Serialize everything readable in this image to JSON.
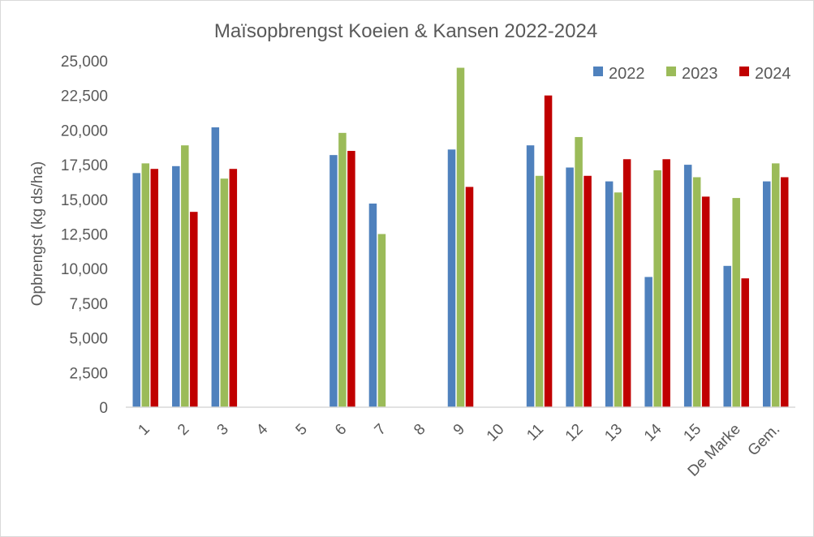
{
  "chart_data": {
    "type": "bar",
    "title": "Maïsopbrengst Koeien & Kansen 2022-2024",
    "xlabel": "",
    "ylabel": "Opbrengst (kg ds/ha)",
    "ylim": [
      0,
      25000
    ],
    "yticks": [
      "0",
      "2,500",
      "5,000",
      "7,500",
      "10,000",
      "12,500",
      "15,000",
      "17,500",
      "20,000",
      "22,500",
      "25,000"
    ],
    "categories": [
      "1",
      "2",
      "3",
      "4",
      "5",
      "6",
      "7",
      "8",
      "9",
      "10",
      "11",
      "12",
      "13",
      "14",
      "15",
      "De Marke",
      "Gem."
    ],
    "legend_position": "top-right",
    "grid": false,
    "series": [
      {
        "name": "2022",
        "color": "#4f81bd",
        "values": [
          16900,
          17400,
          20200,
          null,
          null,
          18200,
          14700,
          null,
          18600,
          null,
          18900,
          17300,
          16300,
          9400,
          17500,
          10200,
          16300
        ]
      },
      {
        "name": "2023",
        "color": "#9bbb59",
        "values": [
          17600,
          18900,
          16500,
          null,
          null,
          19800,
          12500,
          null,
          24500,
          null,
          16700,
          19500,
          15500,
          17100,
          16600,
          15100,
          17600
        ]
      },
      {
        "name": "2024",
        "color": "#c00000",
        "values": [
          17200,
          14100,
          17200,
          null,
          null,
          18500,
          null,
          null,
          15900,
          null,
          22500,
          16700,
          17900,
          17900,
          15200,
          9300,
          16600
        ]
      }
    ]
  }
}
